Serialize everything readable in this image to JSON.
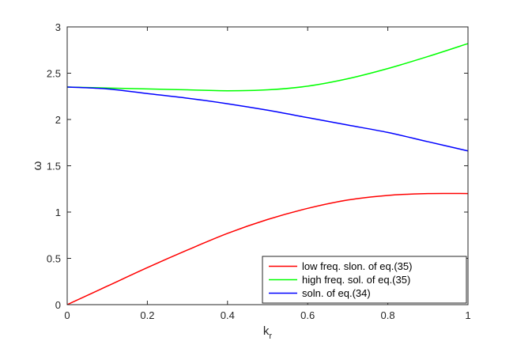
{
  "chart_data": {
    "type": "line",
    "title": "",
    "xlabel": "k",
    "xlabel_subscript": "r",
    "ylabel": "ω",
    "xlim": [
      0,
      1
    ],
    "ylim": [
      0,
      3
    ],
    "xticks": [
      "0",
      "0.2",
      "0.4",
      "0.6",
      "0.8",
      "1"
    ],
    "xtick_values": [
      0,
      0.2,
      0.4,
      0.6,
      0.8,
      1
    ],
    "yticks": [
      "0",
      "0.5",
      "1",
      "1.5",
      "2",
      "2.5",
      "3"
    ],
    "ytick_values": [
      0,
      0.5,
      1,
      1.5,
      2,
      2.5,
      3
    ],
    "grid": false,
    "legend_position": "bottom-right",
    "x": [
      0,
      0.1,
      0.2,
      0.3,
      0.4,
      0.5,
      0.6,
      0.7,
      0.8,
      0.9,
      1.0
    ],
    "series": [
      {
        "name": "low freq. slon. of eq.(35)",
        "color": "#ff0000",
        "values": [
          0,
          0.2,
          0.4,
          0.59,
          0.77,
          0.92,
          1.04,
          1.13,
          1.18,
          1.2,
          1.2
        ]
      },
      {
        "name": "high freq. sol. of eq.(35)",
        "color": "#00ff00",
        "values": [
          2.35,
          2.34,
          2.33,
          2.32,
          2.31,
          2.32,
          2.36,
          2.44,
          2.55,
          2.68,
          2.82
        ]
      },
      {
        "name": "soln. of eq.(34)",
        "color": "#0000ff",
        "values": [
          2.35,
          2.33,
          2.28,
          2.23,
          2.17,
          2.1,
          2.02,
          1.94,
          1.86,
          1.76,
          1.66
        ]
      }
    ]
  }
}
